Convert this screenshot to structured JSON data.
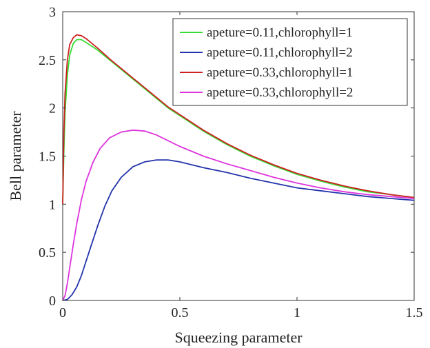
{
  "chart_data": {
    "type": "line",
    "xlabel": "Squeezing parameter",
    "ylabel": "Bell parameter",
    "xlim": [
      0,
      1.5
    ],
    "ylim": [
      0,
      3
    ],
    "xticks": [
      0,
      0.5,
      1,
      1.5
    ],
    "xtick_labels": [
      "0",
      "0.5",
      "1",
      "1.5"
    ],
    "yticks": [
      0,
      0.5,
      1,
      1.5,
      2,
      2.5,
      3
    ],
    "ytick_labels": [
      "0",
      "0.5",
      "1",
      "1.5",
      "2",
      "2.5",
      "3"
    ],
    "grid": false,
    "legend_position": "top-right",
    "series": [
      {
        "name": "apeture=0.11,chlorophyll=1",
        "color": "#33dd33",
        "points": [
          [
            0,
            1.0
          ],
          [
            0.005,
            1.55
          ],
          [
            0.01,
            1.95
          ],
          [
            0.02,
            2.35
          ],
          [
            0.03,
            2.55
          ],
          [
            0.045,
            2.67
          ],
          [
            0.06,
            2.71
          ],
          [
            0.08,
            2.71
          ],
          [
            0.1,
            2.68
          ],
          [
            0.15,
            2.6
          ],
          [
            0.2,
            2.5
          ],
          [
            0.25,
            2.4
          ],
          [
            0.3,
            2.3
          ],
          [
            0.35,
            2.2
          ],
          [
            0.4,
            2.1
          ],
          [
            0.45,
            2.0
          ],
          [
            0.5,
            1.92
          ],
          [
            0.6,
            1.76
          ],
          [
            0.7,
            1.62
          ],
          [
            0.8,
            1.5
          ],
          [
            0.9,
            1.4
          ],
          [
            1.0,
            1.31
          ],
          [
            1.1,
            1.24
          ],
          [
            1.2,
            1.18
          ],
          [
            1.3,
            1.13
          ],
          [
            1.4,
            1.1
          ],
          [
            1.5,
            1.07
          ]
        ]
      },
      {
        "name": "apeture=0.11,chlorophyll=2",
        "color": "#2233aa",
        "points": [
          [
            0,
            0.0
          ],
          [
            0.02,
            0.01
          ],
          [
            0.04,
            0.06
          ],
          [
            0.06,
            0.14
          ],
          [
            0.08,
            0.26
          ],
          [
            0.1,
            0.41
          ],
          [
            0.12,
            0.56
          ],
          [
            0.15,
            0.78
          ],
          [
            0.18,
            0.98
          ],
          [
            0.21,
            1.14
          ],
          [
            0.25,
            1.28
          ],
          [
            0.3,
            1.39
          ],
          [
            0.35,
            1.44
          ],
          [
            0.4,
            1.46
          ],
          [
            0.45,
            1.46
          ],
          [
            0.5,
            1.44
          ],
          [
            0.6,
            1.38
          ],
          [
            0.7,
            1.33
          ],
          [
            0.8,
            1.27
          ],
          [
            0.9,
            1.22
          ],
          [
            1.0,
            1.17
          ],
          [
            1.1,
            1.14
          ],
          [
            1.2,
            1.11
          ],
          [
            1.3,
            1.08
          ],
          [
            1.4,
            1.06
          ],
          [
            1.5,
            1.04
          ]
        ]
      },
      {
        "name": "apeture=0.33,chlorophyll=1",
        "color": "#cc2222",
        "points": [
          [
            0,
            1.0
          ],
          [
            0.005,
            1.75
          ],
          [
            0.01,
            2.15
          ],
          [
            0.02,
            2.5
          ],
          [
            0.03,
            2.66
          ],
          [
            0.045,
            2.73
          ],
          [
            0.06,
            2.76
          ],
          [
            0.08,
            2.75
          ],
          [
            0.1,
            2.72
          ],
          [
            0.15,
            2.62
          ],
          [
            0.2,
            2.51
          ],
          [
            0.25,
            2.41
          ],
          [
            0.3,
            2.31
          ],
          [
            0.35,
            2.21
          ],
          [
            0.4,
            2.11
          ],
          [
            0.45,
            2.01
          ],
          [
            0.5,
            1.93
          ],
          [
            0.6,
            1.77
          ],
          [
            0.7,
            1.63
          ],
          [
            0.8,
            1.51
          ],
          [
            0.9,
            1.41
          ],
          [
            1.0,
            1.32
          ],
          [
            1.1,
            1.25
          ],
          [
            1.2,
            1.19
          ],
          [
            1.3,
            1.14
          ],
          [
            1.4,
            1.1
          ],
          [
            1.5,
            1.07
          ]
        ]
      },
      {
        "name": "apeture=0.33,chlorophyll=2",
        "color": "#dd33dd",
        "points": [
          [
            0,
            0.0
          ],
          [
            0.01,
            0.05
          ],
          [
            0.02,
            0.18
          ],
          [
            0.03,
            0.34
          ],
          [
            0.045,
            0.58
          ],
          [
            0.06,
            0.8
          ],
          [
            0.08,
            1.05
          ],
          [
            0.1,
            1.24
          ],
          [
            0.13,
            1.44
          ],
          [
            0.16,
            1.58
          ],
          [
            0.2,
            1.69
          ],
          [
            0.25,
            1.75
          ],
          [
            0.3,
            1.77
          ],
          [
            0.35,
            1.76
          ],
          [
            0.4,
            1.72
          ],
          [
            0.45,
            1.66
          ],
          [
            0.5,
            1.6
          ],
          [
            0.6,
            1.5
          ],
          [
            0.7,
            1.42
          ],
          [
            0.8,
            1.35
          ],
          [
            0.9,
            1.28
          ],
          [
            1.0,
            1.22
          ],
          [
            1.1,
            1.17
          ],
          [
            1.2,
            1.13
          ],
          [
            1.3,
            1.1
          ],
          [
            1.4,
            1.08
          ],
          [
            1.5,
            1.06
          ]
        ]
      }
    ]
  }
}
